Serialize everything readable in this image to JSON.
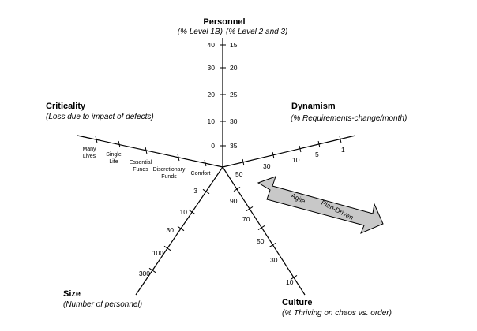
{
  "chart_data": {
    "type": "radar",
    "axes": [
      {
        "key": "personnel",
        "title": "Personnel",
        "subtitle_left": "(% Level 1B)",
        "subtitle_right": "(% Level 2 and 3)",
        "ticks_left": [
          "40",
          "30",
          "20",
          "10",
          "0"
        ],
        "ticks_right": [
          "15",
          "20",
          "25",
          "30",
          "35"
        ]
      },
      {
        "key": "dynamism",
        "title": "Dynamism",
        "subtitle": "(% Requirements-change/month)",
        "ticks": [
          "50",
          "30",
          "10",
          "5",
          "1"
        ]
      },
      {
        "key": "culture",
        "title": "Culture",
        "subtitle": "(% Thriving on chaos vs. order)",
        "ticks": [
          "90",
          "70",
          "50",
          "30",
          "10"
        ]
      },
      {
        "key": "size",
        "title": "Size",
        "subtitle": "(Number of personnel)",
        "ticks": [
          "3",
          "10",
          "30",
          "100",
          "300"
        ]
      },
      {
        "key": "criticality",
        "title": "Criticality",
        "subtitle": "(Loss due to impact of defects)",
        "ticks": [
          "Comfort",
          "Discretionary Funds",
          "Essential Funds",
          "Single Life",
          "Many Lives"
        ]
      }
    ]
  },
  "arrow": {
    "left_label": "Agile",
    "right_label": "Plan-Driven",
    "fill": "#c8c8c8"
  }
}
